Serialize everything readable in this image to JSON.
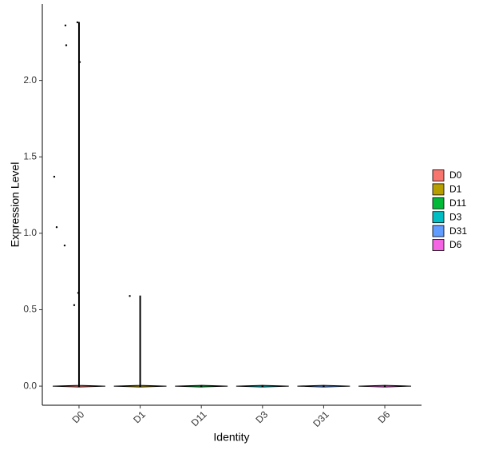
{
  "chart_data": {
    "type": "violin",
    "x_label": "Identity",
    "y_label": "Expression Level",
    "categories": [
      "D0",
      "D1",
      "D11",
      "D3",
      "D31",
      "D6"
    ],
    "series": [
      {
        "name": "D0",
        "color": "#F8766D",
        "values": [
          0,
          2.38,
          2.36,
          2.23,
          2.12,
          1.37,
          1.04,
          0.92,
          0.61,
          0.53
        ]
      },
      {
        "name": "D1",
        "color": "#B79F00",
        "values": [
          0,
          0.59
        ]
      },
      {
        "name": "D11",
        "color": "#00BA38",
        "values": [
          0
        ]
      },
      {
        "name": "D3",
        "color": "#00BFC4",
        "values": [
          0
        ]
      },
      {
        "name": "D31",
        "color": "#619CFF",
        "values": [
          0
        ]
      },
      {
        "name": "D6",
        "color": "#F564E3",
        "values": [
          0
        ]
      }
    ],
    "ylim": [
      -0.125,
      2.5
    ],
    "yticks": [
      {
        "value": 0,
        "label": "0.0"
      },
      0.5,
      {
        "value": 1,
        "label": "1.0"
      },
      1.5,
      {
        "value": 2,
        "label": "2.0"
      }
    ],
    "legend": "right"
  }
}
